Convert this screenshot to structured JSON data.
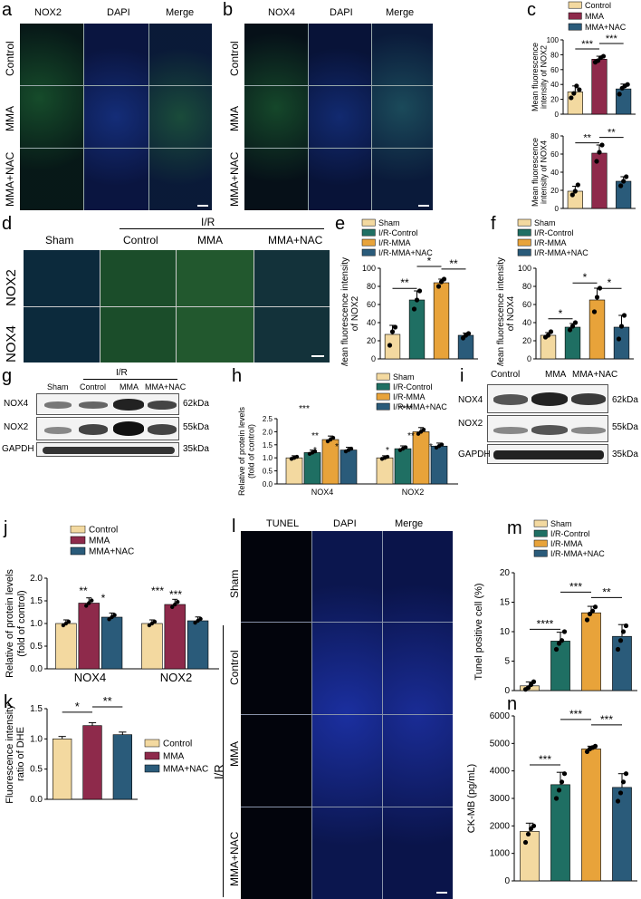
{
  "panel_labels": {
    "a": "a",
    "b": "b",
    "c": "c",
    "d": "d",
    "e": "e",
    "f": "f",
    "g": "g",
    "h": "h",
    "i": "i",
    "j": "j",
    "k": "k",
    "l": "l",
    "m": "m",
    "n": "n"
  },
  "micro_a": {
    "cols": [
      "NOX2",
      "DAPI",
      "Merge"
    ],
    "rows": [
      "Control",
      "MMA",
      "MMA+NAC"
    ]
  },
  "micro_b": {
    "cols": [
      "NOX4",
      "DAPI",
      "Merge"
    ],
    "rows": [
      "Control",
      "MMA",
      "MMA+NAC"
    ]
  },
  "micro_d": {
    "cols": [
      "Sham",
      "Control",
      "MMA",
      "MMA+NAC"
    ],
    "group": "I/R",
    "rows": [
      "NOX2",
      "NOX4"
    ]
  },
  "micro_l": {
    "cols": [
      "TUNEL",
      "DAPI",
      "Merge"
    ],
    "rows": [
      "Sham",
      "Control",
      "MMA",
      "MMA+NAC"
    ],
    "group": "I/R"
  },
  "blot_g": {
    "lanes": [
      "Sham",
      "Control",
      "MMA",
      "MMA+NAC"
    ],
    "group": "I/R",
    "rows": [
      "NOX4",
      "NOX2",
      "GAPDH"
    ],
    "sizes": [
      "62kDa",
      "55kDa",
      "35kDa"
    ]
  },
  "blot_i": {
    "lanes": [
      "Control",
      "MMA",
      "MMA+NAC"
    ],
    "rows": [
      "NOX4",
      "NOX2",
      "GAPDH"
    ],
    "sizes": [
      "62kDa",
      "55kDa",
      "35kDa"
    ]
  },
  "colors": {
    "control": "#f3d9a0",
    "mma": "#8e2a4b",
    "nac": "#2a5b7a",
    "sham": "#f3d9a0",
    "ir_control": "#1f6f63",
    "ir_mma": "#e8a33a",
    "ir_nac": "#2a5b7a"
  },
  "chart_data": [
    {
      "id": "c_top",
      "type": "bar",
      "legend": [
        "Control",
        "MMA",
        "MMA+NAC"
      ],
      "ylabel": "Mean fluorescence intensity of NOX2",
      "ylim": [
        0,
        100
      ],
      "yticks": [
        "0",
        "20",
        "40",
        "60",
        "80",
        "100"
      ],
      "values": [
        30,
        74,
        34
      ],
      "points": [
        [
          22,
          28,
          38,
          33
        ],
        [
          70,
          72,
          76,
          78
        ],
        [
          27,
          35,
          38,
          40
        ]
      ],
      "sig": [
        {
          "a": 0,
          "b": 1,
          "text": "***"
        },
        {
          "a": 1,
          "b": 2,
          "text": "***"
        }
      ]
    },
    {
      "id": "c_bot",
      "type": "bar",
      "ylabel": "Mean fluorescence intensity of NOX4",
      "ylim": [
        0,
        80
      ],
      "yticks": [
        "0",
        "20",
        "40",
        "60",
        "80"
      ],
      "values": [
        19,
        61,
        30
      ],
      "points": [
        [
          15,
          19,
          26
        ],
        [
          52,
          62,
          70
        ],
        [
          25,
          30,
          35
        ]
      ],
      "sig": [
        {
          "a": 0,
          "b": 1,
          "text": "**"
        },
        {
          "a": 1,
          "b": 2,
          "text": "**"
        }
      ]
    },
    {
      "id": "e",
      "type": "bar",
      "legend": [
        "Sham",
        "I/R-Control",
        "I/R-MMA",
        "I/R-MMA+NAC"
      ],
      "ylabel": "Mean fluorescence intensity of NOX2",
      "ylim": [
        0,
        100
      ],
      "yticks": [
        "0",
        "20",
        "40",
        "60",
        "80",
        "100"
      ],
      "values": [
        27,
        65,
        84,
        26
      ],
      "points": [
        [
          15,
          30,
          35
        ],
        [
          55,
          65,
          75
        ],
        [
          80,
          85,
          88
        ],
        [
          23,
          26,
          28
        ]
      ],
      "sig": [
        {
          "a": 0,
          "b": 1,
          "text": "**"
        },
        {
          "a": 1,
          "b": 2,
          "text": "*"
        },
        {
          "a": 2,
          "b": 3,
          "text": "**"
        }
      ]
    },
    {
      "id": "f",
      "type": "bar",
      "legend": [
        "Sham",
        "I/R-Control",
        "I/R-MMA",
        "I/R-MMA+NAC"
      ],
      "ylabel": "Mean fluorescence intensity of NOX4",
      "ylim": [
        0,
        100
      ],
      "yticks": [
        "0",
        "20",
        "40",
        "60",
        "80",
        "100"
      ],
      "values": [
        26,
        35,
        65,
        35
      ],
      "points": [
        [
          24,
          26,
          30
        ],
        [
          32,
          36,
          40
        ],
        [
          52,
          68,
          78
        ],
        [
          22,
          36,
          48
        ]
      ],
      "sig": [
        {
          "a": 0,
          "b": 1,
          "text": "*"
        },
        {
          "a": 1,
          "b": 2,
          "text": "*"
        },
        {
          "a": 2,
          "b": 3,
          "text": "*"
        }
      ]
    },
    {
      "id": "h",
      "type": "bar",
      "legend": [
        "Sham",
        "I/R-Control",
        "I/R-MMA",
        "I/R-MMA+NAC"
      ],
      "ylabel": "Relative of protein levels (fold of control)",
      "ylim": [
        0,
        2.5
      ],
      "yticks": [
        "0.0",
        "0.5",
        "1.0",
        "1.5",
        "2.0",
        "2.5"
      ],
      "categories": [
        "NOX4",
        "NOX2"
      ],
      "series": [
        {
          "name": "Sham",
          "values": [
            1.0,
            1.0
          ]
        },
        {
          "name": "I/R-Control",
          "values": [
            1.2,
            1.35
          ]
        },
        {
          "name": "I/R-MMA",
          "values": [
            1.7,
            2.0
          ]
        },
        {
          "name": "I/R-MMA+NAC",
          "values": [
            1.3,
            1.45
          ]
        }
      ]
    },
    {
      "id": "j",
      "type": "bar",
      "legend": [
        "Control",
        "MMA",
        "MMA+NAC"
      ],
      "ylabel": "Relative of protein levels (fold of control)",
      "ylim": [
        0,
        2.0
      ],
      "yticks": [
        "0.0",
        "0.5",
        "1.0",
        "1.5",
        "2.0"
      ],
      "categories": [
        "NOX4",
        "NOX2"
      ],
      "series": [
        {
          "name": "Control",
          "values": [
            1.0,
            1.0
          ]
        },
        {
          "name": "MMA",
          "values": [
            1.45,
            1.42
          ]
        },
        {
          "name": "MMA+NAC",
          "values": [
            1.14,
            1.06
          ]
        }
      ]
    },
    {
      "id": "k",
      "type": "bar",
      "legend": [
        "Control",
        "MMA",
        "MMA+NAC"
      ],
      "ylabel": "Fluorescence intensity ratio of DHE",
      "ylim": [
        0,
        1.5
      ],
      "yticks": [
        "0.0",
        "0.5",
        "1.0",
        "1.5"
      ],
      "values": [
        1.0,
        1.22,
        1.07
      ],
      "sig": [
        {
          "a": 0,
          "b": 1,
          "text": "*"
        },
        {
          "a": 1,
          "b": 2,
          "text": "**"
        }
      ]
    },
    {
      "id": "m",
      "type": "bar",
      "legend": [
        "Sham",
        "I/R-Control",
        "I/R-MMA",
        "I/R-MMA+NAC"
      ],
      "ylabel": "Tunel positive cell (%)",
      "ylim": [
        0,
        20
      ],
      "yticks": [
        "0",
        "5",
        "10",
        "15",
        "20"
      ],
      "values": [
        0.8,
        8.4,
        13.2,
        9.2
      ],
      "points": [
        [
          0.2,
          0.5,
          1.0,
          1.5
        ],
        [
          7,
          8,
          8.5,
          10
        ],
        [
          12,
          13,
          13.5,
          14.2
        ],
        [
          7,
          8.5,
          10,
          11
        ]
      ],
      "sig": [
        {
          "a": 0,
          "b": 1,
          "text": "****"
        },
        {
          "a": 1,
          "b": 2,
          "text": "***"
        },
        {
          "a": 2,
          "b": 3,
          "text": "**"
        }
      ]
    },
    {
      "id": "n",
      "type": "bar",
      "ylabel": "CK-MB (pg/mL)",
      "ylim": [
        0,
        6000
      ],
      "yticks": [
        "0",
        "1000",
        "2000",
        "3000",
        "4000",
        "5000",
        "6000"
      ],
      "values": [
        1800,
        3500,
        4800,
        3400
      ],
      "points": [
        [
          1400,
          1700,
          1900,
          2000
        ],
        [
          3000,
          3300,
          3600,
          3900
        ],
        [
          4700,
          4800,
          4850,
          4900
        ],
        [
          2900,
          3200,
          3600,
          3900
        ]
      ],
      "sig": [
        {
          "a": 0,
          "b": 1,
          "text": "***"
        },
        {
          "a": 1,
          "b": 2,
          "text": "***"
        },
        {
          "a": 2,
          "b": 3,
          "text": "***"
        }
      ]
    }
  ]
}
